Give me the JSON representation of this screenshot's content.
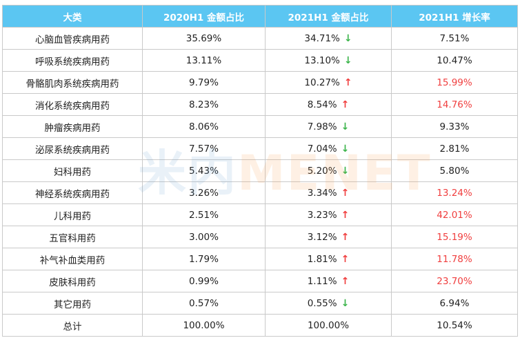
{
  "table": {
    "headers": [
      "大类",
      "2020H1 金额占比",
      "2021H1 金额占比",
      "2021H1 增长率"
    ],
    "rows": [
      {
        "category": "心脑血管疾病用药",
        "share_2020": "35.69%",
        "share_2021": "34.71%",
        "trend": "down",
        "growth": "7.51%",
        "highlight": false
      },
      {
        "category": "呼吸系统疾病用药",
        "share_2020": "13.11%",
        "share_2021": "13.10%",
        "trend": "down",
        "growth": "10.47%",
        "highlight": false
      },
      {
        "category": "骨骼肌肉系统疾病用药",
        "share_2020": "9.79%",
        "share_2021": "10.27%",
        "trend": "up",
        "growth": "15.99%",
        "highlight": true
      },
      {
        "category": "消化系统疾病用药",
        "share_2020": "8.23%",
        "share_2021": "8.54%",
        "trend": "up",
        "growth": "14.76%",
        "highlight": true
      },
      {
        "category": "肿瘤疾病用药",
        "share_2020": "8.06%",
        "share_2021": "7.98%",
        "trend": "down",
        "growth": "9.33%",
        "highlight": false
      },
      {
        "category": "泌尿系统疾病用药",
        "share_2020": "7.57%",
        "share_2021": "7.04%",
        "trend": "down",
        "growth": "2.81%",
        "highlight": false
      },
      {
        "category": "妇科用药",
        "share_2020": "5.43%",
        "share_2021": "5.20%",
        "trend": "down",
        "growth": "5.80%",
        "highlight": false
      },
      {
        "category": "神经系统疾病用药",
        "share_2020": "3.26%",
        "share_2021": "3.34%",
        "trend": "up",
        "growth": "13.24%",
        "highlight": true
      },
      {
        "category": "儿科用药",
        "share_2020": "2.51%",
        "share_2021": "3.23%",
        "trend": "up",
        "growth": "42.01%",
        "highlight": true
      },
      {
        "category": "五官科用药",
        "share_2020": "3.00%",
        "share_2021": "3.12%",
        "trend": "up",
        "growth": "15.19%",
        "highlight": true
      },
      {
        "category": "补气补血类用药",
        "share_2020": "1.79%",
        "share_2021": "1.81%",
        "trend": "up",
        "growth": "11.78%",
        "highlight": true
      },
      {
        "category": "皮肤科用药",
        "share_2020": "0.99%",
        "share_2021": "1.11%",
        "trend": "up",
        "growth": "23.70%",
        "highlight": true
      },
      {
        "category": "其它用药",
        "share_2020": "0.57%",
        "share_2021": "0.55%",
        "trend": "down",
        "growth": "6.94%",
        "highlight": false
      },
      {
        "category": "总计",
        "share_2020": "100.00%",
        "share_2021": "100.00%",
        "trend": "",
        "growth": "10.54%",
        "highlight": false
      }
    ]
  },
  "arrows": {
    "up": "↑",
    "down": "↓"
  },
  "watermark": {
    "cn": "米内",
    "en": "MENET"
  },
  "colors": {
    "header_bg": "#5bc6f2",
    "header_text": "#ffffff",
    "highlight": "#f03e3e",
    "up_arrow": "#f03e3e",
    "down_arrow": "#3bb44a",
    "border": "#c9c9c9"
  }
}
